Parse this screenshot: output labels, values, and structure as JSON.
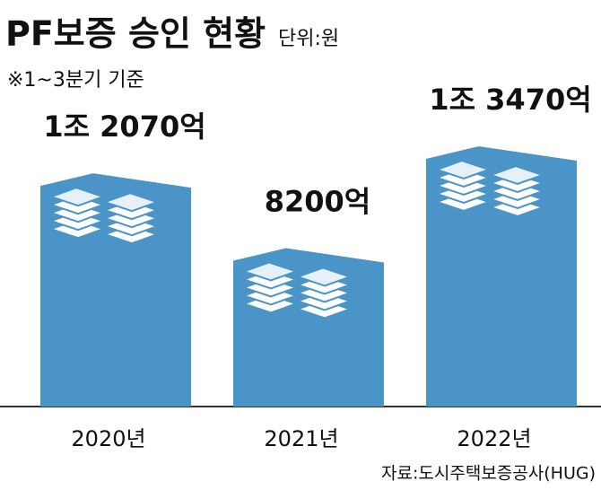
{
  "chart_data": {
    "type": "bar",
    "title": "PF보증 승인 현황",
    "unit": "단위:원",
    "subtitle": "※1~3분기 기준",
    "categories": [
      "2020년",
      "2021년",
      "2022년"
    ],
    "values": [
      12070,
      8200,
      13470
    ],
    "value_labels": [
      "1조 2070억",
      "8200억",
      "1조 3470억"
    ],
    "color": "#4b94c8",
    "source": "자료:도시주택보증공사(HUG)"
  }
}
